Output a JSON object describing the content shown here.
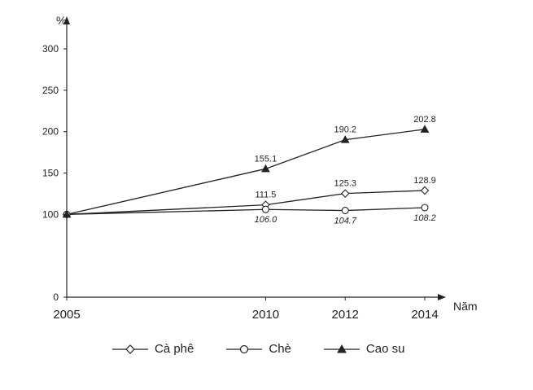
{
  "chart_data": {
    "type": "line",
    "title": "",
    "ylabel": "%",
    "xlabel": "Năm",
    "x": [
      "2005",
      "2010",
      "2012",
      "2014"
    ],
    "x_values": [
      2005,
      2010,
      2012,
      2014
    ],
    "ylim": [
      0,
      300
    ],
    "yticks": [
      0,
      100,
      150,
      200,
      250,
      300
    ],
    "grid": false,
    "legend_position": "bottom",
    "series": [
      {
        "name": "Cà phê",
        "marker": "diamond-open",
        "color": "#222222",
        "values": [
          100,
          111.5,
          125.3,
          128.9
        ],
        "labels": [
          "",
          "111.5",
          "125.3",
          "128.9"
        ],
        "label_side": "above"
      },
      {
        "name": "Chè",
        "marker": "circle-open",
        "color": "#222222",
        "values": [
          100,
          106.0,
          104.7,
          108.2
        ],
        "labels": [
          "",
          "106.0",
          "104.7",
          "108.2"
        ],
        "label_side": "below"
      },
      {
        "name": "Cao su",
        "marker": "triangle-filled",
        "color": "#222222",
        "values": [
          100,
          155.1,
          190.2,
          202.8
        ],
        "labels": [
          "",
          "155.1",
          "190.2",
          "202.8"
        ],
        "label_side": "above"
      }
    ]
  }
}
